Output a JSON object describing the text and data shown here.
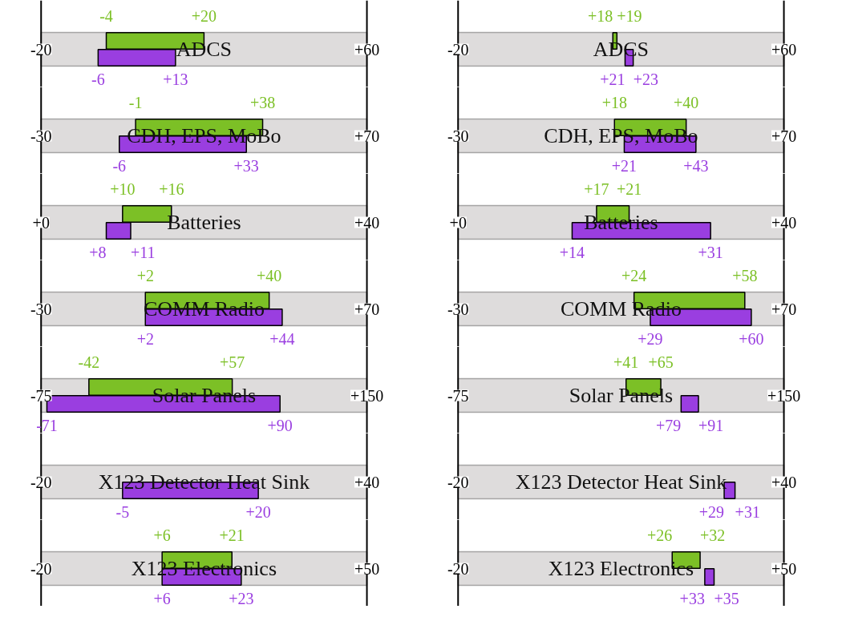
{
  "chart_data": [
    {
      "type": "bar",
      "orientation": "horizontal",
      "title": "ADCS",
      "categories": [
        null,
        null
      ],
      "xlim": [
        -20,
        60
      ],
      "xticks": [
        -20,
        {
          "value": 60,
          "label": "+60"
        }
      ],
      "bands": [
        {
          "axis": "x",
          "from": -20,
          "to": 60,
          "color": "#dedcdc"
        }
      ],
      "grid": "x",
      "colors": [
        "#7cc026",
        "#9a3ee0"
      ],
      "values": [
        24,
        19
      ],
      "base": [
        -4,
        -6
      ],
      "annotations": [
        "-4",
        "+20",
        "-6",
        "+13"
      ]
    },
    {
      "type": "bar",
      "orientation": "horizontal",
      "title": "ADCS",
      "categories": [
        null,
        null
      ],
      "xlim": [
        -20,
        60
      ],
      "xticks": [
        -20,
        {
          "value": 60,
          "label": "+60"
        }
      ],
      "bands": [
        {
          "axis": "x",
          "from": -20,
          "to": 60,
          "color": "#dedcdc"
        }
      ],
      "grid": "x",
      "colors": [
        "#7cc026",
        "#9a3ee0"
      ],
      "values": [
        1,
        2
      ],
      "base": [
        18,
        21
      ],
      "annotations": [
        "+18",
        "+19",
        "+21",
        "+23"
      ]
    },
    {
      "type": "bar",
      "orientation": "horizontal",
      "title": "CDH, EPS, MoBo",
      "categories": [
        null,
        null
      ],
      "xlim": [
        -30,
        70
      ],
      "xticks": [
        -30,
        {
          "value": 70,
          "label": "+70"
        }
      ],
      "bands": [
        {
          "axis": "x",
          "from": -30,
          "to": 70,
          "color": "#dedcdc"
        }
      ],
      "grid": "x",
      "colors": [
        "#7cc026",
        "#9a3ee0"
      ],
      "values": [
        39,
        39
      ],
      "base": [
        -1,
        -6
      ],
      "annotations": [
        "-1",
        "+38",
        "-6",
        "+33"
      ]
    },
    {
      "type": "bar",
      "orientation": "horizontal",
      "title": "CDH, EPS, MoBo",
      "categories": [
        null,
        null
      ],
      "xlim": [
        -30,
        70
      ],
      "xticks": [
        -30,
        {
          "value": 70,
          "label": "+70"
        }
      ],
      "bands": [
        {
          "axis": "x",
          "from": -30,
          "to": 70,
          "color": "#dedcdc"
        }
      ],
      "grid": "x",
      "colors": [
        "#7cc026",
        "#9a3ee0"
      ],
      "values": [
        22,
        22
      ],
      "base": [
        18,
        21
      ],
      "annotations": [
        "+18",
        "+40",
        "+21",
        "+43"
      ]
    },
    {
      "type": "bar",
      "orientation": "horizontal",
      "title": "Batteries",
      "categories": [
        null,
        null
      ],
      "xlim": [
        0,
        40
      ],
      "xticks": [
        {
          "value": 0,
          "label": "+0"
        },
        {
          "value": 40,
          "label": "+40"
        }
      ],
      "bands": [
        {
          "axis": "x",
          "from": 0,
          "to": 40,
          "color": "#dedcdc"
        }
      ],
      "grid": "x",
      "colors": [
        "#7cc026",
        "#9a3ee0"
      ],
      "values": [
        6,
        3
      ],
      "base": [
        10,
        8
      ],
      "annotations": [
        "+10",
        "+16",
        "+8",
        "+11"
      ]
    },
    {
      "type": "bar",
      "orientation": "horizontal",
      "title": "Batteries",
      "categories": [
        null,
        null
      ],
      "xlim": [
        0,
        40
      ],
      "xticks": [
        {
          "value": 0,
          "label": "+0"
        },
        {
          "value": 40,
          "label": "+40"
        }
      ],
      "bands": [
        {
          "axis": "x",
          "from": 0,
          "to": 40,
          "color": "#dedcdc"
        }
      ],
      "grid": "x",
      "colors": [
        "#7cc026",
        "#9a3ee0"
      ],
      "values": [
        4,
        17
      ],
      "base": [
        17,
        14
      ],
      "annotations": [
        "+17",
        "+21",
        "+14",
        "+31"
      ]
    },
    {
      "type": "bar",
      "orientation": "horizontal",
      "title": "COMM Radio",
      "categories": [
        null,
        null
      ],
      "xlim": [
        -30,
        70
      ],
      "xticks": [
        -30,
        {
          "value": 70,
          "label": "+70"
        }
      ],
      "bands": [
        {
          "axis": "x",
          "from": -30,
          "to": 70,
          "color": "#dedcdc"
        }
      ],
      "grid": "x",
      "colors": [
        "#7cc026",
        "#9a3ee0"
      ],
      "values": [
        38,
        42
      ],
      "base": [
        2,
        2
      ],
      "annotations": [
        "+2",
        "+40",
        "+2",
        "+44"
      ]
    },
    {
      "type": "bar",
      "orientation": "horizontal",
      "title": "COMM Radio",
      "categories": [
        null,
        null
      ],
      "xlim": [
        -30,
        70
      ],
      "xticks": [
        -30,
        {
          "value": 70,
          "label": "+70"
        }
      ],
      "bands": [
        {
          "axis": "x",
          "from": -30,
          "to": 70,
          "color": "#dedcdc"
        }
      ],
      "grid": "x",
      "colors": [
        "#7cc026",
        "#9a3ee0"
      ],
      "values": [
        34,
        31
      ],
      "base": [
        24,
        29
      ],
      "annotations": [
        "+24",
        "+58",
        "+29",
        "+60"
      ]
    },
    {
      "type": "bar",
      "orientation": "horizontal",
      "title": "Solar Panels",
      "categories": [
        null,
        null
      ],
      "xlim": [
        -75,
        150
      ],
      "xticks": [
        -75,
        {
          "value": 150,
          "label": "+150"
        }
      ],
      "bands": [
        {
          "axis": "x",
          "from": -75,
          "to": 150,
          "color": "#dedcdc"
        }
      ],
      "grid": "x",
      "colors": [
        "#7cc026",
        "#9a3ee0"
      ],
      "values": [
        99,
        161
      ],
      "base": [
        -42,
        -71
      ],
      "annotations": [
        "-42",
        "+57",
        "-71",
        "+90"
      ]
    },
    {
      "type": "bar",
      "orientation": "horizontal",
      "title": "Solar Panels",
      "categories": [
        null,
        null
      ],
      "xlim": [
        -75,
        150
      ],
      "xticks": [
        -75,
        {
          "value": 150,
          "label": "+150"
        }
      ],
      "bands": [
        {
          "axis": "x",
          "from": -75,
          "to": 150,
          "color": "#dedcdc"
        }
      ],
      "grid": "x",
      "colors": [
        "#7cc026",
        "#9a3ee0"
      ],
      "values": [
        24,
        12
      ],
      "base": [
        41,
        79
      ],
      "annotations": [
        "+41",
        "+65",
        "+79",
        "+91"
      ]
    },
    {
      "type": "bar",
      "orientation": "horizontal",
      "title": "X123 Detector Heat Sink",
      "categories": [
        null,
        null
      ],
      "xlim": [
        -20,
        40
      ],
      "xticks": [
        -20,
        {
          "value": 40,
          "label": "+40"
        }
      ],
      "bands": [
        {
          "axis": "x",
          "from": -20,
          "to": 40,
          "color": "#dedcdc"
        }
      ],
      "grid": "x",
      "colors": [
        null,
        "#9a3ee0"
      ],
      "values": [
        null,
        25
      ],
      "base": [
        null,
        -5
      ],
      "annotations": [
        "-5",
        "+20"
      ]
    },
    {
      "type": "bar",
      "orientation": "horizontal",
      "title": "X123 Detector Heat Sink",
      "categories": [
        null,
        null
      ],
      "xlim": [
        -20,
        40
      ],
      "xticks": [
        -20,
        {
          "value": 40,
          "label": "+40"
        }
      ],
      "bands": [
        {
          "axis": "x",
          "from": -20,
          "to": 40,
          "color": "#dedcdc"
        }
      ],
      "grid": "x",
      "colors": [
        null,
        "#9a3ee0"
      ],
      "values": [
        null,
        2
      ],
      "base": [
        null,
        29
      ],
      "annotations": [
        "+29",
        "+31"
      ]
    },
    {
      "type": "bar",
      "orientation": "horizontal",
      "title": "X123 Electronics",
      "categories": [
        null,
        null
      ],
      "xlim": [
        -20,
        50
      ],
      "xticks": [
        -20,
        {
          "value": 50,
          "label": "+50"
        }
      ],
      "bands": [
        {
          "axis": "x",
          "from": -20,
          "to": 50,
          "color": "#dedcdc"
        }
      ],
      "grid": "x",
      "colors": [
        "#7cc026",
        "#9a3ee0"
      ],
      "values": [
        15,
        17
      ],
      "base": [
        6,
        6
      ],
      "annotations": [
        "+6",
        "+21",
        "+6",
        "+23"
      ]
    },
    {
      "type": "bar",
      "orientation": "horizontal",
      "title": "X123 Electronics",
      "categories": [
        null,
        null
      ],
      "xlim": [
        -20,
        50
      ],
      "xticks": [
        -20,
        {
          "value": 50,
          "label": "+50"
        }
      ],
      "bands": [
        {
          "axis": "x",
          "from": -20,
          "to": 50,
          "color": "#dedcdc"
        }
      ],
      "grid": "x",
      "colors": [
        "#7cc026",
        "#9a3ee0"
      ],
      "values": [
        6,
        2
      ],
      "base": [
        26,
        33
      ],
      "annotations": [
        "+26",
        "+32",
        "+33",
        "+35"
      ]
    }
  ]
}
